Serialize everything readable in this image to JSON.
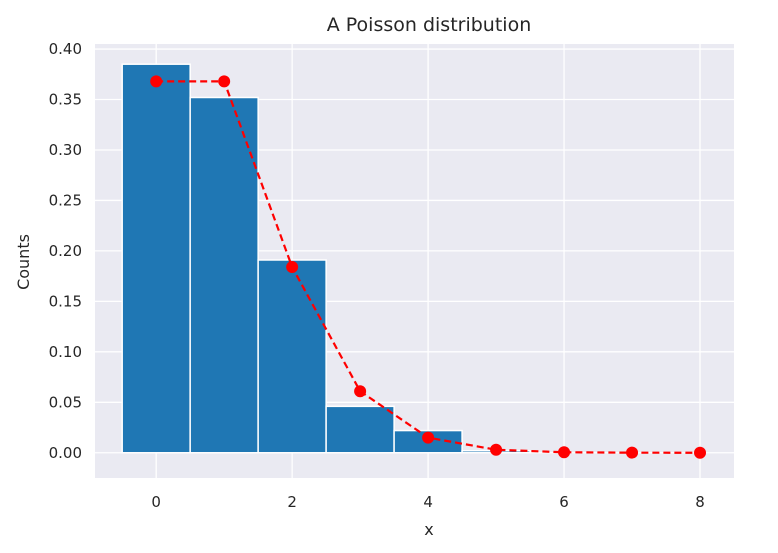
{
  "chart_data": {
    "type": "bar",
    "title": "A Poisson distribution",
    "xlabel": "x",
    "ylabel": "Counts",
    "xlim": [
      -0.9,
      8.5
    ],
    "ylim": [
      -0.025,
      0.405
    ],
    "grid": true,
    "xticks": [
      0,
      2,
      4,
      6,
      8
    ],
    "yticks": [
      0.0,
      0.05,
      0.1,
      0.15,
      0.2,
      0.25,
      0.3,
      0.35,
      0.4
    ],
    "xtick_labels": [
      "0",
      "2",
      "4",
      "6",
      "8"
    ],
    "ytick_labels": [
      "0.00",
      "0.05",
      "0.10",
      "0.15",
      "0.20",
      "0.25",
      "0.30",
      "0.35",
      "0.40"
    ],
    "histogram": {
      "color": "#1f77b4",
      "bins": [
        {
          "start": -0.5,
          "end": 0.5,
          "value": 0.385
        },
        {
          "start": 0.5,
          "end": 1.5,
          "value": 0.352
        },
        {
          "start": 1.5,
          "end": 2.5,
          "value": 0.191
        },
        {
          "start": 2.5,
          "end": 3.5,
          "value": 0.046
        },
        {
          "start": 3.5,
          "end": 4.5,
          "value": 0.022
        },
        {
          "start": 4.5,
          "end": 5.5,
          "value": 0.002
        }
      ]
    },
    "series": [
      {
        "type": "line",
        "style": "dashed",
        "marker": "circle",
        "color": "#ff0000",
        "x": [
          0,
          1,
          2,
          3,
          4,
          5,
          6,
          7,
          8
        ],
        "y": [
          0.368,
          0.368,
          0.184,
          0.061,
          0.015,
          0.003,
          0.0005,
          0.0001,
          1e-05
        ]
      }
    ]
  }
}
